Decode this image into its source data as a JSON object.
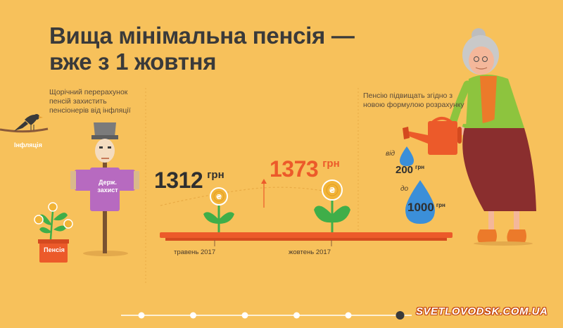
{
  "title": {
    "line1": "Вища мінімальна пенсія —",
    "line2": "вже з 1 жовтня"
  },
  "left_note": "Щорічний перерахунок пенсій захистить пенсіонерів від інфляції",
  "right_note": "Пенсію підвищать згідно з новою формулою розрахунку",
  "labels": {
    "inflation": "Інфляція",
    "state_protection_line1": "Держ.",
    "state_protection_line2": "захист",
    "pension": "Пенсія"
  },
  "may": {
    "value": "1312",
    "unit": "грн",
    "date": "травень 2017"
  },
  "october": {
    "value": "1373",
    "unit": "грн",
    "date": "жовтень 2017"
  },
  "formula": {
    "from_label": "від",
    "from_value": "200",
    "from_unit": "грн",
    "to_label": "до",
    "to_value": "1000",
    "to_unit": "грн"
  },
  "coin_symbol": "₴",
  "timeline": {
    "dot_count": 6,
    "active_index": 5
  },
  "watermark": "SVETLOVODSK.COM.UA",
  "colors": {
    "background": "#f7c15b",
    "title": "#3a3a3a",
    "accent_orange": "#ec5a2a",
    "plant_green": "#3fae49",
    "water_blue": "#3b8fd9",
    "scarecrow_purple": "#b76ac0",
    "coin_gold": "#f2b437"
  }
}
